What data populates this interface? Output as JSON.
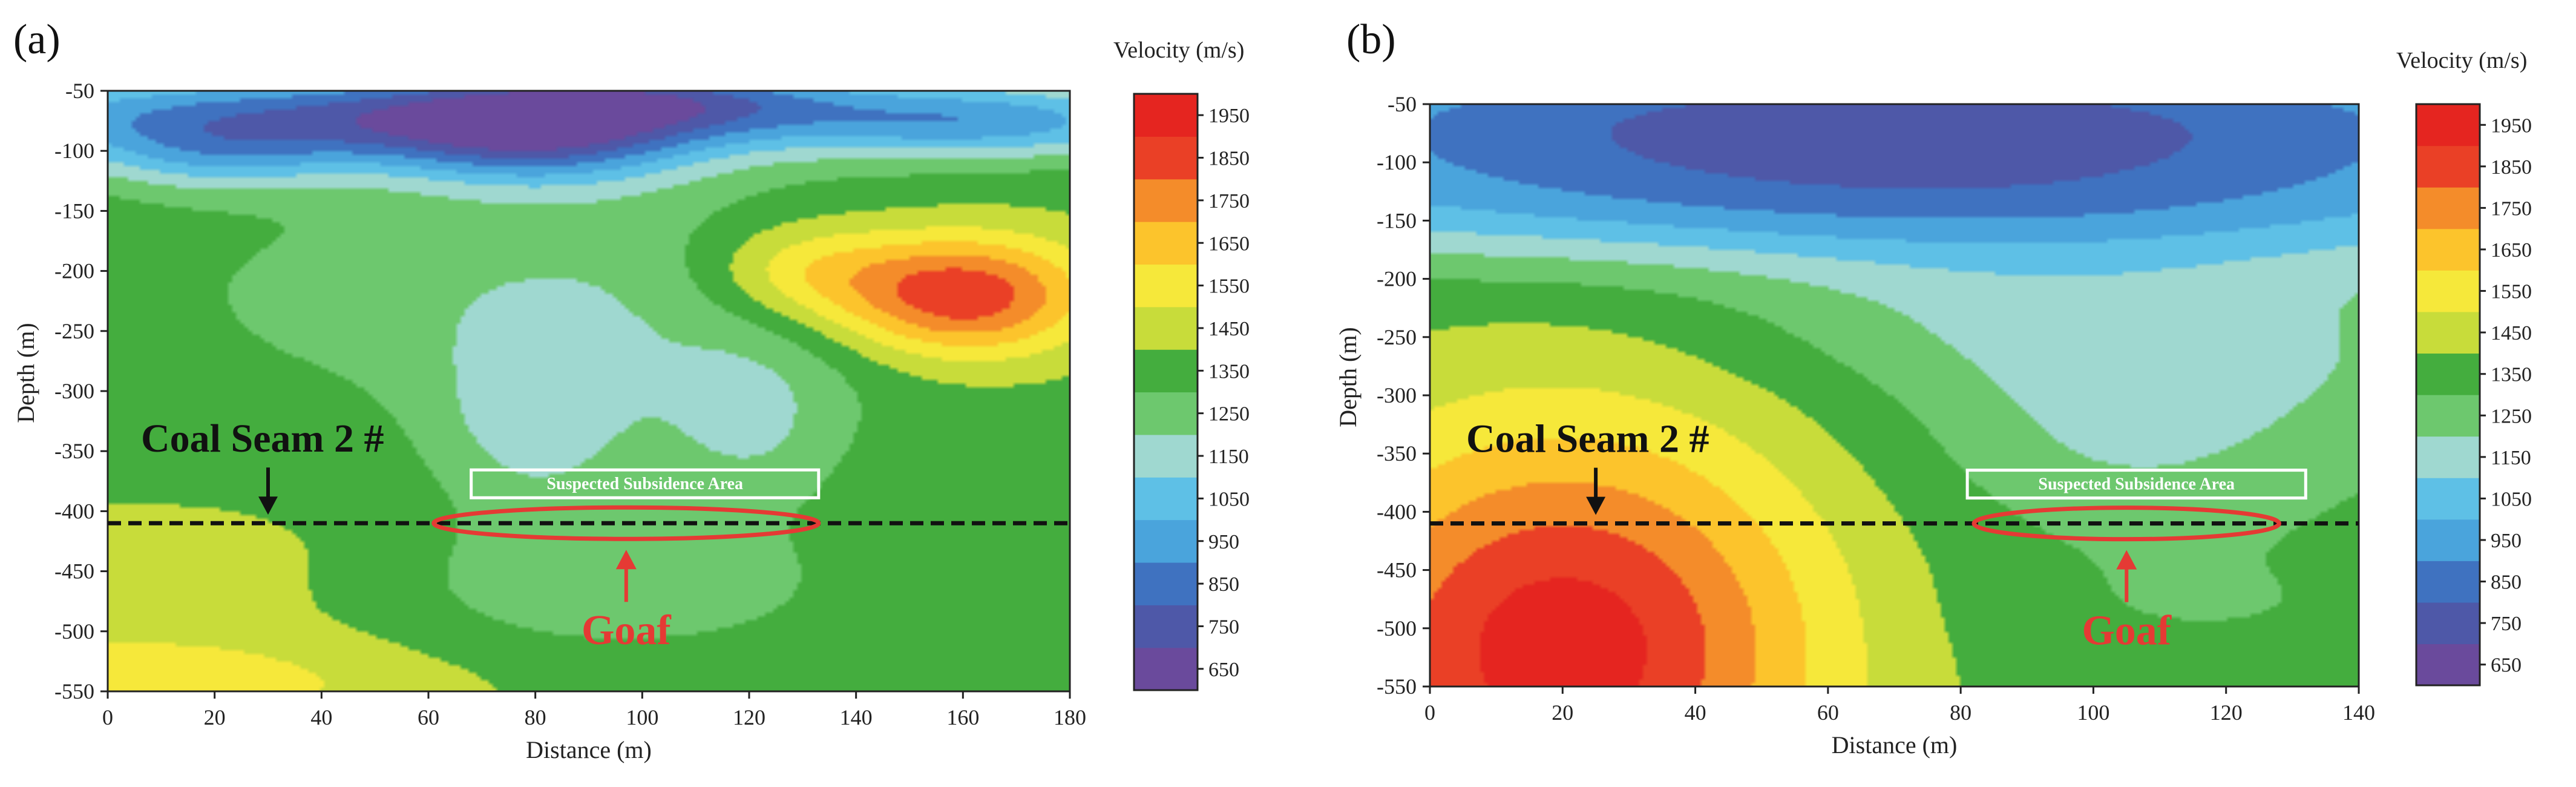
{
  "chart_data": [
    {
      "type": "heatmap",
      "panel_label": "(a)",
      "title": "",
      "xlabel": "Distance (m)",
      "ylabel": "Depth (m)",
      "xlim": [
        0,
        180
      ],
      "ylim": [
        -550,
        -50
      ],
      "x_ticks": [
        0,
        20,
        40,
        60,
        80,
        100,
        120,
        140,
        160,
        180
      ],
      "y_ticks": [
        -50,
        -100,
        -150,
        -200,
        -250,
        -300,
        -350,
        -400,
        -450,
        -500,
        -550
      ],
      "background_velocity": 1380,
      "anomalies": [
        {
          "x": 45,
          "y": -70,
          "sx": 60,
          "sy": 26,
          "v": -520
        },
        {
          "x": 165,
          "y": -75,
          "sx": 28,
          "sy": 22,
          "v": -380
        },
        {
          "x": 80,
          "y": -90,
          "sx": 22,
          "sy": 30,
          "v": -420
        },
        {
          "x": 20,
          "y": -105,
          "sx": 18,
          "sy": 22,
          "v": -240
        },
        {
          "x": 105,
          "y": -55,
          "sx": 25,
          "sy": 18,
          "v": -280
        },
        {
          "x": 90,
          "y": -220,
          "sx": 55,
          "sy": 70,
          "v": -170
        },
        {
          "x": 80,
          "y": -330,
          "sx": 14,
          "sy": 55,
          "v": -200
        },
        {
          "x": 120,
          "y": -330,
          "sx": 13,
          "sy": 50,
          "v": -170
        },
        {
          "x": 95,
          "y": -460,
          "sx": 28,
          "sy": 40,
          "v": -160
        },
        {
          "x": 160,
          "y": -220,
          "sx": 17,
          "sy": 36,
          "v": 560
        },
        {
          "x": 130,
          "y": -200,
          "sx": 14,
          "sy": 30,
          "v": 240
        },
        {
          "x": 5,
          "y": -545,
          "sx": 35,
          "sy": 30,
          "v": 200
        },
        {
          "x": 10,
          "y": -450,
          "sx": 30,
          "sy": 40,
          "v": 60
        }
      ],
      "coal_seam": {
        "label": "Coal Seam 2 #",
        "depth": -410,
        "arrow_x": 30
      },
      "suspected_area": {
        "label": "Suspected Subsidence Area",
        "x_start": 68,
        "x_end": 133
      },
      "goaf": {
        "label": "Goaf",
        "x_center": 97,
        "x_radius": 36
      },
      "colorbar": {
        "title": "Velocity (m/s)",
        "min": 600,
        "max": 2000,
        "ticks": [
          650,
          750,
          850,
          950,
          1050,
          1150,
          1250,
          1350,
          1450,
          1550,
          1650,
          1750,
          1850,
          1950
        ]
      }
    },
    {
      "type": "heatmap",
      "panel_label": "(b)",
      "title": "",
      "xlabel": "Distance (m)",
      "ylabel": "Depth (m)",
      "xlim": [
        0,
        140
      ],
      "ylim": [
        -550,
        -50
      ],
      "x_ticks": [
        0,
        20,
        40,
        60,
        80,
        100,
        120,
        140
      ],
      "y_ticks": [
        -50,
        -100,
        -150,
        -200,
        -250,
        -300,
        -350,
        -400,
        -450,
        -500,
        -550
      ],
      "background_velocity": 1340,
      "anomalies": [
        {
          "x": 70,
          "y": -60,
          "sx": 90,
          "sy": 55,
          "v": -560
        },
        {
          "x": 70,
          "y": -140,
          "sx": 90,
          "sy": 40,
          "v": -260
        },
        {
          "x": 85,
          "y": -230,
          "sx": 30,
          "sy": 50,
          "v": -120
        },
        {
          "x": 130,
          "y": -260,
          "sx": 30,
          "sy": 60,
          "v": -100
        },
        {
          "x": 20,
          "y": -520,
          "sx": 28,
          "sy": 140,
          "v": 620
        },
        {
          "x": 105,
          "y": -340,
          "sx": 22,
          "sy": 60,
          "v": -130
        },
        {
          "x": 115,
          "y": -480,
          "sx": 25,
          "sy": 35,
          "v": -40
        }
      ],
      "coal_seam": {
        "label": "Coal Seam 2 #",
        "depth": -410,
        "arrow_x": 25
      },
      "suspected_area": {
        "label": "Suspected Subsidence Area",
        "x_start": 81,
        "x_end": 132
      },
      "goaf": {
        "label": "Goaf",
        "x_center": 105,
        "x_radius": 23
      },
      "colorbar": {
        "title": "Velocity (m/s)",
        "min": 600,
        "max": 2000,
        "ticks": [
          650,
          750,
          850,
          950,
          1050,
          1150,
          1250,
          1350,
          1450,
          1550,
          1650,
          1750,
          1850,
          1950
        ]
      }
    }
  ],
  "palette": [
    "#6a4a9c",
    "#4e58a8",
    "#3f72c0",
    "#4aa4dc",
    "#5ec0e6",
    "#9fd8d0",
    "#6dc86e",
    "#44ad3e",
    "#c8dc3a",
    "#f6e83a",
    "#fcc42c",
    "#f48c2a",
    "#ea4026",
    "#e52520"
  ],
  "annotation_colors": {
    "seam": "#111111",
    "goaf": "#e53a34",
    "suspected_box": "#ffffff"
  }
}
